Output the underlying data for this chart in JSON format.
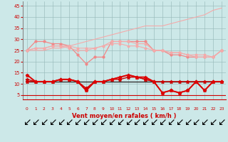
{
  "x": [
    0,
    1,
    2,
    3,
    4,
    5,
    6,
    7,
    8,
    9,
    10,
    11,
    12,
    13,
    14,
    15,
    16,
    17,
    18,
    19,
    20,
    21,
    22,
    23
  ],
  "line_upper": [
    25,
    25,
    25,
    26,
    26,
    27,
    28,
    29,
    30,
    31,
    32,
    33,
    34,
    35,
    36,
    36,
    36,
    37,
    38,
    39,
    40,
    41,
    43,
    44
  ],
  "line_pink1": [
    25,
    29,
    29,
    28,
    28,
    27,
    23,
    19,
    22,
    22,
    29,
    29,
    29,
    29,
    29,
    25,
    25,
    23,
    23,
    22,
    22,
    22,
    22,
    25
  ],
  "line_pink2": [
    25,
    26,
    26,
    27,
    27,
    26,
    25,
    25,
    26,
    27,
    29,
    29,
    29,
    28,
    28,
    25,
    25,
    24,
    24,
    23,
    22,
    22,
    22,
    25
  ],
  "line_pink3": [
    25,
    26,
    26,
    27,
    27,
    27,
    26,
    26,
    26,
    27,
    28,
    28,
    27,
    27,
    26,
    25,
    25,
    24,
    24,
    23,
    23,
    23,
    22,
    25
  ],
  "line_black": [
    11,
    11,
    11,
    11,
    11,
    11,
    11,
    11,
    11,
    11,
    11,
    11,
    11,
    11,
    11,
    11,
    11,
    11,
    11,
    11,
    11,
    11,
    11,
    11
  ],
  "line_red1": [
    11,
    11,
    11,
    11,
    12,
    12,
    11,
    8,
    11,
    11,
    12,
    12,
    13,
    13,
    12,
    11,
    11,
    11,
    11,
    11,
    11,
    11,
    11,
    11
  ],
  "line_red2": [
    12,
    11,
    11,
    11,
    12,
    12,
    11,
    7,
    11,
    11,
    12,
    13,
    14,
    13,
    12,
    11,
    6,
    7,
    6,
    7,
    11,
    7,
    11,
    11
  ],
  "line_red3": [
    14,
    11,
    11,
    11,
    12,
    12,
    11,
    7,
    11,
    11,
    12,
    13,
    14,
    13,
    13,
    11,
    6,
    7,
    6,
    7,
    11,
    7,
    11,
    11
  ],
  "background_color": "#cce8e8",
  "grid_color": "#99bbbb",
  "xlabel": "Vent moyen/en rafales ( km/h )",
  "ylim": [
    3,
    47
  ],
  "yticks": [
    5,
    10,
    15,
    20,
    25,
    30,
    35,
    40,
    45
  ],
  "xlim": [
    -0.5,
    23.5
  ]
}
